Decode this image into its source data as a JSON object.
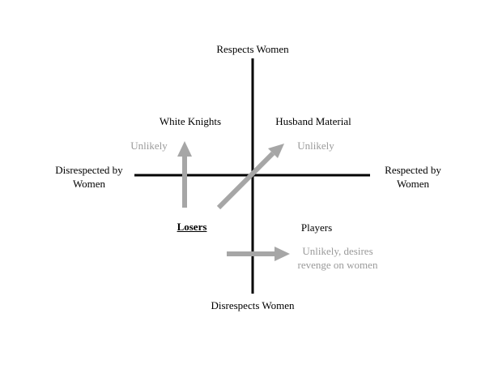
{
  "axes": {
    "top": "Respects Women",
    "bottom": "Disrespects Women",
    "left_line1": "Disrespected by",
    "left_line2": "Women",
    "right_line1": "Respected by",
    "right_line2": "Women"
  },
  "quadrants": {
    "top_left": "White Knights",
    "top_right": "Husband Material",
    "bottom_left": "Losers",
    "bottom_right": "Players"
  },
  "notes": {
    "white_knights": "Unlikely",
    "husband_material": "Unlikely",
    "players_line1": "Unlikely, desires",
    "players_line2": "revenge on women"
  },
  "colors": {
    "axis": "#000000",
    "arrow": "#a6a6a6",
    "note_text": "#9a9a9a"
  }
}
